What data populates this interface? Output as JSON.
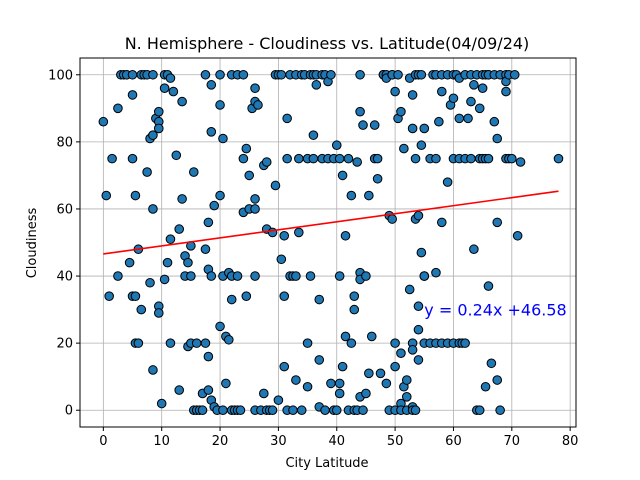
{
  "chart_data": {
    "type": "scatter",
    "title": "N. Hemisphere - Cloudiness vs. Latitude(04/09/24)",
    "xlabel": "City Latitude",
    "ylabel": "Cloudiness",
    "xlim": [
      -4,
      81
    ],
    "ylim": [
      -5,
      105
    ],
    "xticks": [
      0,
      10,
      20,
      30,
      40,
      50,
      60,
      70,
      80
    ],
    "yticks": [
      0,
      20,
      40,
      60,
      80,
      100
    ],
    "grid": true,
    "colors": {
      "points": "#1f77b4",
      "point_edge": "#000000",
      "regression": "#ff0000",
      "equation": "#0000ff"
    },
    "regression": {
      "slope": 0.24,
      "intercept": 46.58,
      "x_range": [
        0,
        78
      ],
      "equation": "y = 0.24x +46.58",
      "label_x": 55,
      "label_y": 30
    },
    "points": [
      [
        0,
        86
      ],
      [
        0.5,
        64
      ],
      [
        1,
        34
      ],
      [
        1.5,
        75
      ],
      [
        2.5,
        40
      ],
      [
        2.5,
        90
      ],
      [
        3,
        100
      ],
      [
        3.5,
        100
      ],
      [
        4,
        100
      ],
      [
        4.5,
        44
      ],
      [
        5,
        100
      ],
      [
        5,
        94
      ],
      [
        5,
        75
      ],
      [
        5,
        34
      ],
      [
        5.5,
        64
      ],
      [
        5.5,
        34
      ],
      [
        5.5,
        20
      ],
      [
        6,
        48
      ],
      [
        6,
        20
      ],
      [
        6.5,
        100
      ],
      [
        6.5,
        30
      ],
      [
        7,
        100
      ],
      [
        7.5,
        100
      ],
      [
        7.5,
        71
      ],
      [
        8,
        81
      ],
      [
        8,
        38
      ],
      [
        8.5,
        100
      ],
      [
        8.5,
        82
      ],
      [
        8.5,
        60
      ],
      [
        8.5,
        12
      ],
      [
        9,
        87
      ],
      [
        9.5,
        89
      ],
      [
        9.5,
        86
      ],
      [
        9.5,
        84
      ],
      [
        9.5,
        31
      ],
      [
        9.5,
        29
      ],
      [
        10,
        2
      ],
      [
        10.5,
        100
      ],
      [
        10.5,
        96
      ],
      [
        10.5,
        39
      ],
      [
        11,
        100
      ],
      [
        11,
        44
      ],
      [
        11.5,
        99
      ],
      [
        11.5,
        51
      ],
      [
        11.5,
        20
      ],
      [
        12,
        95
      ],
      [
        12.5,
        76
      ],
      [
        13,
        54
      ],
      [
        13,
        6
      ],
      [
        13.5,
        92
      ],
      [
        13.5,
        63
      ],
      [
        14,
        46
      ],
      [
        14,
        40
      ],
      [
        14.5,
        44
      ],
      [
        14.5,
        19
      ],
      [
        15,
        49
      ],
      [
        15,
        40
      ],
      [
        15,
        20
      ],
      [
        15.5,
        71
      ],
      [
        15.5,
        0
      ],
      [
        16,
        20
      ],
      [
        16,
        0
      ],
      [
        16.5,
        0
      ],
      [
        17,
        5
      ],
      [
        17,
        0
      ],
      [
        17.5,
        100
      ],
      [
        17.5,
        48
      ],
      [
        17.5,
        20
      ],
      [
        18,
        56
      ],
      [
        18,
        42
      ],
      [
        18,
        16
      ],
      [
        18,
        6
      ],
      [
        18.5,
        97
      ],
      [
        18.5,
        83
      ],
      [
        18.5,
        40
      ],
      [
        18.5,
        3
      ],
      [
        19,
        61
      ],
      [
        19,
        1
      ],
      [
        19.5,
        0
      ],
      [
        20,
        100
      ],
      [
        20,
        91
      ],
      [
        20,
        64
      ],
      [
        20,
        25
      ],
      [
        20.5,
        81
      ],
      [
        20.5,
        40
      ],
      [
        20.5,
        0
      ],
      [
        21,
        22
      ],
      [
        21,
        8
      ],
      [
        21.5,
        41
      ],
      [
        21.5,
        21
      ],
      [
        22,
        100
      ],
      [
        22,
        40
      ],
      [
        22,
        33
      ],
      [
        22,
        0
      ],
      [
        22.5,
        0
      ],
      [
        23,
        100
      ],
      [
        23,
        40
      ],
      [
        23,
        0
      ],
      [
        23.5,
        0
      ],
      [
        24,
        100
      ],
      [
        24,
        75
      ],
      [
        24,
        59
      ],
      [
        24.5,
        78
      ],
      [
        24.5,
        34
      ],
      [
        25,
        70
      ],
      [
        25,
        60
      ],
      [
        25.5,
        90
      ],
      [
        26,
        96
      ],
      [
        26,
        92
      ],
      [
        26,
        63
      ],
      [
        26,
        60
      ],
      [
        26,
        40
      ],
      [
        26,
        0
      ],
      [
        26.5,
        91
      ],
      [
        27,
        0
      ],
      [
        27.5,
        73
      ],
      [
        27.5,
        5
      ],
      [
        28,
        74
      ],
      [
        28,
        54
      ],
      [
        28,
        0
      ],
      [
        28.5,
        0
      ],
      [
        29,
        53
      ],
      [
        29,
        0
      ],
      [
        29.5,
        100
      ],
      [
        29.5,
        67
      ],
      [
        30,
        100
      ],
      [
        30,
        3
      ],
      [
        30.5,
        100
      ],
      [
        30.5,
        45
      ],
      [
        31,
        52
      ],
      [
        31,
        34
      ],
      [
        31,
        13
      ],
      [
        31.5,
        87
      ],
      [
        31.5,
        75
      ],
      [
        31.5,
        0
      ],
      [
        32,
        100
      ],
      [
        32,
        40
      ],
      [
        32.5,
        40
      ],
      [
        32.5,
        0
      ],
      [
        33,
        100
      ],
      [
        33,
        40
      ],
      [
        33,
        9
      ],
      [
        33.5,
        75
      ],
      [
        33.5,
        53
      ],
      [
        34,
        100
      ],
      [
        34,
        0
      ],
      [
        34.5,
        100
      ],
      [
        35,
        75
      ],
      [
        35,
        20
      ],
      [
        35,
        7
      ],
      [
        35.5,
        100
      ],
      [
        35.5,
        40
      ],
      [
        36,
        100
      ],
      [
        36,
        82
      ],
      [
        36,
        75
      ],
      [
        36.5,
        100
      ],
      [
        36.5,
        97
      ],
      [
        37,
        33
      ],
      [
        37,
        15
      ],
      [
        37,
        1
      ],
      [
        37.5,
        100
      ],
      [
        37.5,
        75
      ],
      [
        38,
        100
      ],
      [
        38,
        0
      ],
      [
        38.5,
        98
      ],
      [
        38.5,
        75
      ],
      [
        39,
        100
      ],
      [
        39,
        8
      ],
      [
        39.5,
        75
      ],
      [
        39.5,
        0
      ],
      [
        40,
        79
      ],
      [
        40,
        0
      ],
      [
        40.5,
        75
      ],
      [
        40.5,
        40
      ],
      [
        40.5,
        8
      ],
      [
        40.5,
        5
      ],
      [
        41,
        70
      ],
      [
        41,
        13
      ],
      [
        41.5,
        52
      ],
      [
        41.5,
        22
      ],
      [
        42,
        75
      ],
      [
        42,
        0
      ],
      [
        42.5,
        64
      ],
      [
        42.5,
        20
      ],
      [
        43,
        34
      ],
      [
        43,
        30
      ],
      [
        43,
        0
      ],
      [
        43.5,
        74
      ],
      [
        43.5,
        0
      ],
      [
        44,
        100
      ],
      [
        44,
        89
      ],
      [
        44,
        41
      ],
      [
        44,
        39
      ],
      [
        44,
        4
      ],
      [
        44.5,
        85
      ],
      [
        44.5,
        0
      ],
      [
        45,
        40
      ],
      [
        45,
        5
      ],
      [
        45.5,
        64
      ],
      [
        45.5,
        11
      ],
      [
        46,
        22
      ],
      [
        46.5,
        85
      ],
      [
        46.5,
        75
      ],
      [
        47,
        75
      ],
      [
        47,
        69
      ],
      [
        47.5,
        11
      ],
      [
        48,
        100
      ],
      [
        48,
        100
      ],
      [
        48.5,
        100
      ],
      [
        48.5,
        99
      ],
      [
        48.5,
        8
      ],
      [
        49,
        58
      ],
      [
        49,
        0
      ],
      [
        49.5,
        100
      ],
      [
        49.5,
        100
      ],
      [
        49.5,
        57
      ],
      [
        50,
        95
      ],
      [
        50,
        20
      ],
      [
        50,
        13
      ],
      [
        50,
        0
      ],
      [
        50.5,
        100
      ],
      [
        50.5,
        87
      ],
      [
        51,
        89
      ],
      [
        51,
        17
      ],
      [
        51,
        2
      ],
      [
        51,
        0
      ],
      [
        51.5,
        78
      ],
      [
        51.5,
        7
      ],
      [
        52,
        9
      ],
      [
        52,
        4
      ],
      [
        52,
        0
      ],
      [
        52.5,
        99
      ],
      [
        52.5,
        36
      ],
      [
        53,
        94
      ],
      [
        53,
        84
      ],
      [
        53,
        20
      ],
      [
        53,
        18
      ],
      [
        53,
        1
      ],
      [
        53,
        0
      ],
      [
        53.5,
        100
      ],
      [
        53.5,
        75
      ],
      [
        53.5,
        57
      ],
      [
        53.5,
        0
      ],
      [
        54,
        100
      ],
      [
        54,
        58
      ],
      [
        54,
        31
      ],
      [
        54,
        24
      ],
      [
        54,
        15
      ],
      [
        54.5,
        100
      ],
      [
        54.5,
        79
      ],
      [
        54.5,
        47
      ],
      [
        55,
        84
      ],
      [
        55,
        40
      ],
      [
        55,
        20
      ],
      [
        55,
        40
      ],
      [
        56,
        75
      ],
      [
        56,
        20
      ],
      [
        56.5,
        100
      ],
      [
        57,
        100
      ],
      [
        57,
        75
      ],
      [
        57,
        41
      ],
      [
        57,
        20
      ],
      [
        57.5,
        86
      ],
      [
        58,
        100
      ],
      [
        58,
        95
      ],
      [
        58,
        56
      ],
      [
        58,
        20
      ],
      [
        59,
        100
      ],
      [
        59,
        68
      ],
      [
        59,
        20
      ],
      [
        59.5,
        91
      ],
      [
        60,
        100
      ],
      [
        60,
        93
      ],
      [
        60,
        75
      ],
      [
        60,
        20
      ],
      [
        60.5,
        100
      ],
      [
        61,
        99
      ],
      [
        61,
        87
      ],
      [
        61,
        75
      ],
      [
        61,
        20
      ],
      [
        61.5,
        20
      ],
      [
        62,
        100
      ],
      [
        62,
        75
      ],
      [
        62,
        20
      ],
      [
        62.5,
        87
      ],
      [
        63,
        100
      ],
      [
        63,
        92
      ],
      [
        63,
        75
      ],
      [
        63.5,
        97
      ],
      [
        63.5,
        48
      ],
      [
        64,
        100
      ],
      [
        64,
        0
      ],
      [
        64.5,
        90
      ],
      [
        64.5,
        75
      ],
      [
        64.5,
        0
      ],
      [
        65,
        100
      ],
      [
        65,
        96
      ],
      [
        65,
        75
      ],
      [
        65.5,
        100
      ],
      [
        65.5,
        75
      ],
      [
        65.5,
        7
      ],
      [
        66,
        100
      ],
      [
        66,
        100
      ],
      [
        66,
        37
      ],
      [
        66,
        75
      ],
      [
        66.5,
        14
      ],
      [
        67,
        100
      ],
      [
        67,
        86
      ],
      [
        67.5,
        81
      ],
      [
        67.5,
        56
      ],
      [
        67.5,
        9
      ],
      [
        68,
        100
      ],
      [
        68,
        0
      ],
      [
        69,
        100
      ],
      [
        69,
        98
      ],
      [
        69,
        95
      ],
      [
        69,
        75
      ],
      [
        69.5,
        100
      ],
      [
        69.5,
        75
      ],
      [
        70,
        75
      ],
      [
        70.5,
        100
      ],
      [
        71,
        52
      ],
      [
        71.5,
        74
      ],
      [
        78,
        75
      ]
    ]
  }
}
